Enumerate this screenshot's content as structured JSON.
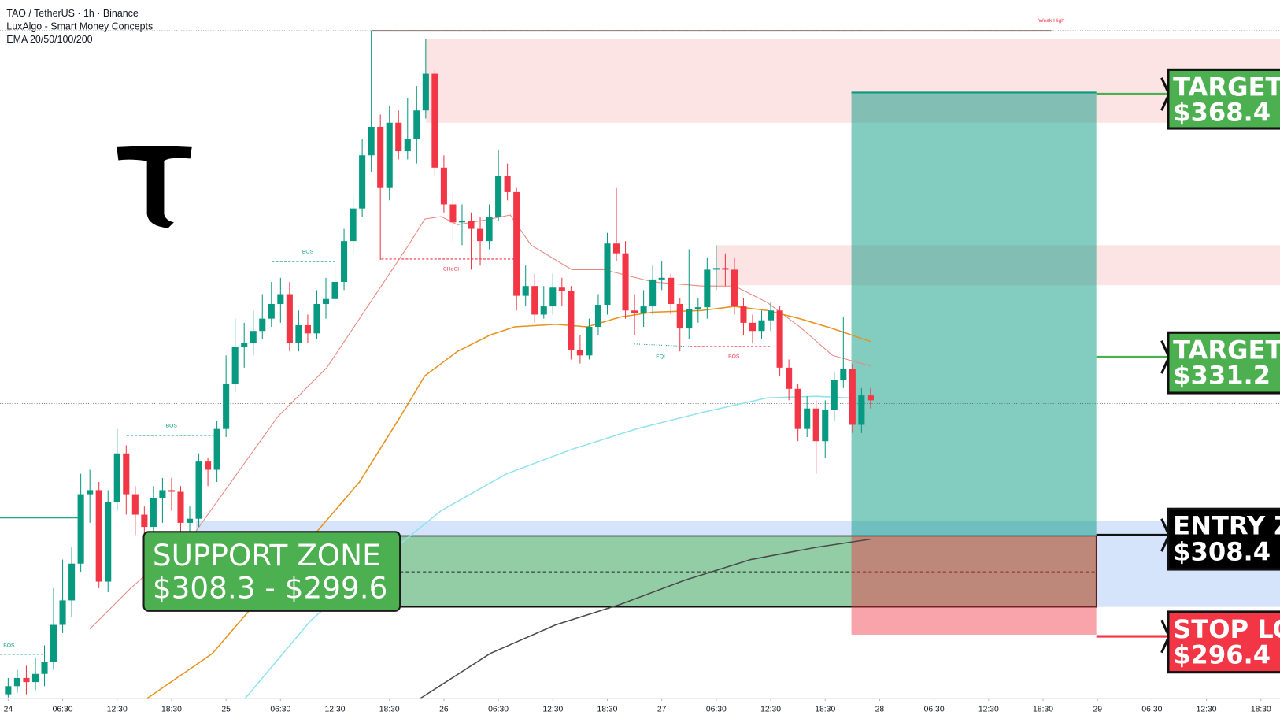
{
  "chart_data": {
    "type": "candlestick",
    "title": "TAO / TetherUS · 1h · Binance",
    "indicators": [
      "LuxAlgo - Smart Money Concepts",
      "EMA 20/50/100/200"
    ],
    "up_color": "#089981",
    "down_color": "#f23645",
    "open": [
      291.0,
      292.0,
      293.0,
      292.5,
      293.5,
      295.0,
      299.5,
      302.5,
      307.0,
      315.5,
      316.0,
      304.8,
      314.5,
      320.5,
      315.5,
      313.0,
      311.5,
      315.0,
      316.0,
      315.8,
      312.0,
      312.5,
      319.5,
      318.5,
      323.5,
      329.0,
      333.5,
      334.0,
      335.5,
      337.0,
      338.8,
      340.0,
      334.0,
      336.2,
      335.2,
      338.8,
      339.4,
      341.5,
      346.5,
      350.5,
      357.0,
      360.5,
      353.0,
      361.0,
      357.5,
      359.0,
      362.5,
      367.0,
      355.5,
      351.0,
      348.8,
      349.0,
      348.0,
      346.5,
      349.5,
      354.5,
      352.5,
      339.8,
      341.0,
      337.5,
      338.5,
      340.8,
      340.4,
      333.2,
      332.5,
      336.0,
      338.7,
      346.2,
      345.0,
      338.0,
      337.7,
      338.5,
      341.8,
      342.0,
      338.8,
      335.8,
      338.2,
      338.4,
      343.0,
      343.2,
      343.0,
      338.5,
      336.5,
      335.5,
      336.8,
      338.0,
      331.0,
      328.4,
      323.5,
      326.0,
      322.0,
      325.8,
      329.5,
      330.8,
      324.0,
      327.6
    ],
    "high": [
      293.0,
      294.0,
      294.5,
      295.5,
      297.0,
      304.0,
      307.5,
      309.0,
      318.0,
      318.5,
      317.0,
      316.0,
      323.5,
      321.5,
      316.5,
      314.0,
      316.5,
      317.5,
      317.5,
      316.5,
      314.0,
      320.5,
      320.0,
      324.5,
      332.5,
      337.0,
      336.5,
      338.0,
      340.0,
      341.5,
      342.0,
      341.5,
      338.0,
      337.5,
      340.5,
      342.0,
      343.5,
      348.0,
      352.0,
      359.0,
      372.3,
      362.0,
      363.0,
      362.5,
      364.0,
      365.5,
      371.3,
      367.5,
      357.0,
      352.5,
      351.0,
      350.0,
      349.5,
      351.0,
      357.7,
      356.0,
      353.0,
      343.5,
      342.5,
      341.0,
      342.5,
      342.0,
      341.0,
      335.0,
      337.0,
      340.0,
      347.5,
      353.0,
      346.5,
      340.0,
      340.5,
      343.5,
      344.0,
      342.5,
      339.5,
      345.5,
      339.5,
      344.5,
      346.0,
      345.0,
      344.5,
      339.5,
      337.5,
      338.0,
      339.0,
      338.5,
      332.0,
      329.0,
      327.5,
      327.0,
      327.0,
      330.5,
      337.2,
      331.5,
      328.5,
      328.5
    ],
    "low": [
      290.6,
      291.2,
      291.0,
      291.5,
      292.0,
      294.0,
      298.5,
      300.5,
      306.0,
      312.0,
      304.0,
      303.5,
      313.5,
      313.0,
      310.5,
      307.0,
      309.0,
      312.0,
      313.5,
      310.5,
      310.0,
      311.5,
      316.5,
      317.0,
      322.5,
      328.0,
      331.0,
      332.5,
      334.5,
      336.0,
      336.5,
      333.0,
      333.0,
      334.0,
      334.5,
      337.0,
      338.5,
      340.5,
      345.0,
      349.5,
      355.0,
      344.2,
      351.5,
      356.5,
      356.5,
      356.0,
      361.5,
      354.5,
      350.0,
      346.5,
      346.0,
      343.0,
      343.5,
      345.5,
      349.0,
      351.5,
      338.0,
      338.5,
      336.5,
      337.0,
      337.5,
      338.5,
      332.0,
      331.5,
      332.0,
      335.0,
      337.5,
      344.0,
      337.0,
      335.0,
      336.0,
      337.5,
      340.5,
      337.5,
      333.0,
      334.5,
      336.5,
      337.0,
      340.5,
      341.0,
      337.5,
      335.0,
      334.0,
      334.5,
      335.5,
      330.0,
      327.0,
      322.0,
      322.5,
      318.0,
      320.0,
      324.5,
      328.5,
      323.0,
      323.0,
      326.0
    ],
    "close": [
      292.0,
      293.0,
      292.5,
      293.5,
      295.0,
      299.5,
      302.5,
      307.0,
      315.5,
      316.0,
      304.8,
      314.5,
      320.5,
      315.5,
      313.0,
      311.5,
      315.0,
      316.0,
      315.8,
      312.0,
      312.5,
      319.5,
      318.5,
      323.5,
      329.0,
      333.5,
      334.0,
      335.5,
      337.0,
      338.8,
      340.0,
      334.0,
      336.2,
      335.2,
      338.8,
      339.4,
      341.5,
      346.5,
      350.5,
      357.0,
      360.5,
      353.0,
      361.0,
      357.5,
      359.0,
      362.5,
      367.0,
      355.5,
      351.0,
      348.8,
      349.0,
      348.0,
      346.5,
      349.5,
      354.5,
      352.5,
      339.8,
      341.0,
      337.5,
      338.5,
      340.8,
      340.4,
      333.2,
      332.5,
      336.0,
      338.7,
      346.2,
      345.0,
      338.0,
      337.7,
      338.5,
      341.8,
      342.0,
      338.8,
      335.8,
      338.2,
      338.4,
      343.0,
      343.2,
      343.0,
      338.5,
      336.5,
      335.5,
      336.8,
      338.0,
      331.0,
      328.4,
      323.5,
      326.0,
      322.0,
      325.8,
      329.5,
      330.8,
      324.0,
      327.6,
      327.0
    ],
    "ema": [
      {
        "color": "#e8867f",
        "x": [
          9.0,
          13.5,
          20.7,
          25.2,
          29.7,
          35.1,
          40.5,
          44.1,
          45.9,
          47.7,
          49.5,
          53.1,
          55.3,
          57.6,
          62.1,
          65.6,
          71.0,
          76.4,
          80.0,
          83.6,
          87.2,
          90.8,
          95.0
        ],
        "values": [
          299.0,
          304.0,
          311.0,
          318.0,
          325.0,
          331.0,
          340.0,
          346.0,
          349.2,
          349.5,
          348.5,
          349.2,
          349.7,
          346.0,
          343.0,
          343.0,
          341.5,
          341.0,
          341.0,
          339.0,
          336.0,
          332.5,
          331.2
        ]
      },
      {
        "color": "#e8921e",
        "x": [
          15.3,
          22.5,
          27.9,
          33.3,
          38.7,
          43.2,
          45.9,
          49.5,
          53.1,
          55.8,
          60.3,
          63.8,
          67.4,
          71.0,
          76.4,
          80.0,
          83.6,
          87.2,
          90.8,
          95.0
        ],
        "values": [
          290.5,
          296.0,
          303.0,
          310.0,
          317.0,
          325.0,
          330.0,
          333.0,
          335.0,
          336.0,
          336.3,
          336.0,
          337.2,
          337.8,
          338.0,
          338.5,
          338.0,
          337.0,
          335.8,
          334.2
        ]
      },
      {
        "color": "#8fe3ee",
        "x": [
          26.1,
          33.3,
          40.5,
          47.7,
          54.9,
          62.1,
          69.2,
          76.4,
          83.6,
          89.0,
          92.6
        ],
        "values": [
          290.5,
          300.0,
          307.0,
          313.5,
          318.0,
          321.0,
          323.5,
          325.5,
          327.3,
          327.5,
          327.3
        ]
      },
      {
        "color": "#4a4a4a",
        "x": [
          45.4,
          53.1,
          60.3,
          67.4,
          74.6,
          81.8,
          89.0,
          95.0
        ],
        "values": [
          290.5,
          296.0,
          299.5,
          302.0,
          305.0,
          307.5,
          309.0,
          310.0
        ]
      }
    ],
    "xlim": [
      -0.9,
      140.1
    ],
    "ylim": [
      290.5,
      376
    ],
    "xticks": [
      {
        "value": 0,
        "label": "24"
      },
      {
        "value": 6,
        "label": "06:30"
      },
      {
        "value": 12,
        "label": "12:30"
      },
      {
        "value": 18,
        "label": "18:30"
      },
      {
        "value": 24,
        "label": "25"
      },
      {
        "value": 30,
        "label": "06:30"
      },
      {
        "value": 36,
        "label": "12:30"
      },
      {
        "value": 42,
        "label": "18:30"
      },
      {
        "value": 48,
        "label": "26"
      },
      {
        "value": 54,
        "label": "06:30"
      },
      {
        "value": 60,
        "label": "12:30"
      },
      {
        "value": 66,
        "label": "18:30"
      },
      {
        "value": 72,
        "label": "27"
      },
      {
        "value": 78,
        "label": "06:30"
      },
      {
        "value": 84,
        "label": "12:30"
      },
      {
        "value": 90,
        "label": "18:30"
      },
      {
        "value": 96,
        "label": "28"
      },
      {
        "value": 102,
        "label": "06:30"
      },
      {
        "value": 108,
        "label": "12:30"
      },
      {
        "value": 114,
        "label": "18:30"
      },
      {
        "value": 120,
        "label": "29"
      },
      {
        "value": 126,
        "label": "06:30"
      },
      {
        "value": 132,
        "label": "12:30"
      },
      {
        "value": 138,
        "label": "18:30"
      }
    ],
    "annotations": [
      "Weak High",
      "BOS",
      "BOS",
      "BOS",
      "CHoCH",
      "EQL",
      "BOS"
    ],
    "trade_labels": [
      {
        "title": "TARGET T",
        "price": "$368.4"
      },
      {
        "title": "TARGET O",
        "price": "$331.2"
      },
      {
        "title": "ENTRY ZO",
        "price": "$308.4"
      },
      {
        "title": "STOP LOS",
        "price": "$296.4"
      }
    ],
    "support_label": {
      "title": "SUPPORT ZONE",
      "range": "$308.3 - $299.6"
    }
  }
}
